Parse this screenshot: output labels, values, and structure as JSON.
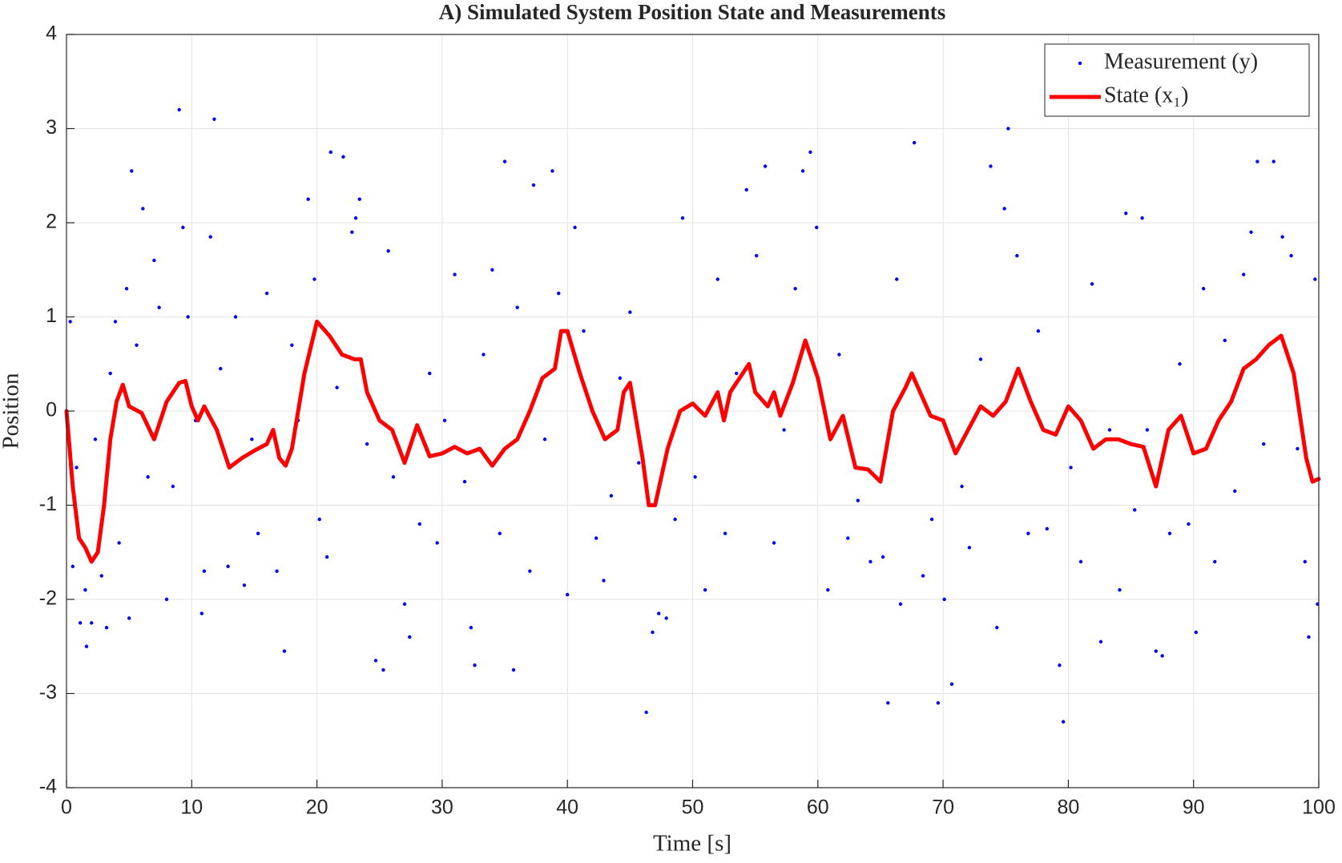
{
  "chart_data": {
    "type": "line",
    "title": "A) Simulated System Position State and Measurements",
    "x_label": "Time [s]",
    "y_label": "Position",
    "xlim": [
      0,
      100
    ],
    "ylim": [
      -4,
      4
    ],
    "xticks": [
      0,
      10,
      20,
      30,
      40,
      50,
      60,
      70,
      80,
      90,
      100
    ],
    "yticks": [
      -4,
      -3,
      -2,
      -1,
      0,
      1,
      2,
      3,
      4
    ],
    "grid": true,
    "legend": "top-right",
    "series": [
      {
        "name": "Measurement (y)",
        "type": "scatter",
        "color": "#0000ff",
        "x": [
          0.3,
          0.5,
          0.8,
          1.1,
          1.5,
          1.6,
          2,
          2.3,
          2.8,
          3.2,
          3.5,
          3.9,
          4.2,
          4.8,
          5,
          5.2,
          5.6,
          6.1,
          6.5,
          7,
          7.4,
          8,
          8.5,
          9,
          9.3,
          9.7,
          10.3,
          10.8,
          11,
          11.5,
          11.8,
          12.3,
          12.9,
          13.5,
          14.2,
          14.8,
          15.3,
          16,
          16.8,
          17.4,
          18,
          18.5,
          19.3,
          19.8,
          20.2,
          20.8,
          21.1,
          21.6,
          22.1,
          22.8,
          23.1,
          23.4,
          24,
          24.7,
          25.3,
          25.7,
          26.1,
          27,
          27.4,
          28.2,
          29,
          29.6,
          30.2,
          31,
          31.8,
          32.3,
          32.6,
          33.3,
          34,
          34.6,
          35,
          35.7,
          36,
          37,
          37.3,
          38.2,
          38.8,
          39.3,
          40,
          40.6,
          41.3,
          42.3,
          42.9,
          43.5,
          44.2,
          45,
          45.7,
          46.3,
          46.8,
          47.3,
          47.9,
          48.6,
          49.2,
          50.2,
          51,
          52,
          52.6,
          53.5,
          54.3,
          55.1,
          55.8,
          56.5,
          57.3,
          58.2,
          58.8,
          59.4,
          59.9,
          60.8,
          61.7,
          62.4,
          63.2,
          64.2,
          65.2,
          65.6,
          66.3,
          66.6,
          67.7,
          68.4,
          69.1,
          69.6,
          70.1,
          70.7,
          71.5,
          72.1,
          73,
          73.8,
          74.3,
          74.9,
          75.2,
          75.9,
          76.8,
          77.6,
          78.3,
          79.3,
          79.6,
          80.2,
          81,
          81.9,
          82.6,
          83.3,
          84.1,
          84.6,
          85.3,
          85.9,
          86.3,
          87,
          87.5,
          88.1,
          88.9,
          89.6,
          90.2,
          90.8,
          91.7,
          92.5,
          93.3,
          94,
          94.6,
          95.1,
          95.6,
          96.4,
          97.1,
          97.8,
          98.3,
          98.9,
          99.2,
          99.7,
          99.9
        ],
        "values": [
          0.95,
          -1.65,
          -0.6,
          -2.25,
          -1.9,
          -2.5,
          -2.25,
          -0.3,
          -1.75,
          -2.3,
          0.4,
          0.95,
          -1.4,
          1.3,
          -2.2,
          2.55,
          0.7,
          2.15,
          -0.7,
          1.6,
          1.1,
          -2.0,
          -0.8,
          3.2,
          1.95,
          1.0,
          -0.1,
          -2.15,
          -1.7,
          1.85,
          3.1,
          0.45,
          -1.65,
          1.0,
          -1.85,
          -0.3,
          -1.3,
          1.25,
          -1.7,
          -2.55,
          0.7,
          -0.1,
          2.25,
          1.4,
          -1.15,
          -1.55,
          2.75,
          0.25,
          2.7,
          1.9,
          2.05,
          2.25,
          -0.35,
          -2.65,
          -2.75,
          1.7,
          -0.7,
          -2.05,
          -2.4,
          -1.2,
          0.4,
          -1.4,
          -0.1,
          1.45,
          -0.75,
          -2.3,
          -2.7,
          0.6,
          1.5,
          -1.3,
          2.65,
          -2.75,
          1.1,
          -1.7,
          2.4,
          -0.3,
          2.55,
          1.25,
          -1.95,
          1.95,
          0.85,
          -1.35,
          -1.8,
          -0.9,
          0.35,
          1.05,
          -0.55,
          -3.2,
          -2.35,
          -2.15,
          -2.2,
          -1.15,
          2.05,
          -0.7,
          -1.9,
          1.4,
          -1.3,
          0.4,
          2.35,
          1.65,
          2.6,
          -1.4,
          -0.2,
          1.3,
          2.55,
          2.75,
          1.95,
          -1.9,
          0.6,
          -1.35,
          -0.95,
          -1.6,
          -1.55,
          -3.1,
          1.4,
          -2.05,
          2.85,
          -1.75,
          -1.15,
          -3.1,
          -2.0,
          -2.9,
          -0.8,
          -1.45,
          0.55,
          2.6,
          -2.3,
          2.15,
          3.0,
          1.65,
          -1.3,
          0.85,
          -1.25,
          -2.7,
          -3.3,
          -0.6,
          -1.6,
          1.35,
          -2.45,
          -0.2,
          -1.9,
          2.1,
          -1.05,
          2.05,
          -0.2,
          -2.55,
          -2.6,
          -1.3,
          0.5,
          -1.2,
          -2.35,
          1.3,
          -1.6,
          0.75,
          -0.85,
          1.45,
          1.9,
          2.65,
          -0.35,
          2.65,
          1.85,
          1.65,
          -0.4,
          -1.6,
          -2.4,
          1.4,
          -2.05
        ]
      },
      {
        "name": "State (x₁)",
        "type": "line",
        "color": "#ff0000",
        "x": [
          0,
          0.5,
          1,
          1.5,
          2,
          2.5,
          3,
          3.5,
          4,
          4.5,
          5,
          6,
          7,
          8,
          9,
          9.5,
          10,
          10.5,
          11,
          12,
          13,
          14,
          15,
          16,
          16.5,
          17,
          17.5,
          18,
          19,
          20,
          21,
          22,
          23,
          23.5,
          24,
          25,
          26,
          27,
          28,
          29,
          30,
          31,
          32,
          33,
          34,
          35,
          36,
          37,
          38,
          39,
          39.5,
          40,
          41,
          42,
          43,
          44,
          44.5,
          45,
          46,
          46.5,
          47,
          48,
          49,
          50,
          51,
          52,
          52.5,
          53,
          54,
          54.5,
          55,
          56,
          56.5,
          57,
          58,
          59,
          60,
          61,
          62,
          63,
          64,
          65,
          66,
          67,
          67.5,
          68,
          69,
          70,
          71,
          72,
          73,
          74,
          75,
          76,
          77,
          78,
          79,
          80,
          81,
          82,
          83,
          84,
          85,
          86,
          87,
          88,
          89,
          90,
          91,
          92,
          93,
          94,
          95,
          96,
          97,
          98,
          99,
          99.5,
          100
        ],
        "values": [
          0,
          -0.8,
          -1.35,
          -1.45,
          -1.6,
          -1.5,
          -1.0,
          -0.3,
          0.1,
          0.28,
          0.05,
          -0.02,
          -0.3,
          0.1,
          0.3,
          0.32,
          0.05,
          -0.1,
          0.05,
          -0.2,
          -0.6,
          -0.5,
          -0.42,
          -0.35,
          -0.2,
          -0.5,
          -0.58,
          -0.4,
          0.4,
          0.95,
          0.8,
          0.6,
          0.55,
          0.55,
          0.2,
          -0.1,
          -0.2,
          -0.55,
          -0.15,
          -0.48,
          -0.45,
          -0.38,
          -0.45,
          -0.4,
          -0.58,
          -0.4,
          -0.3,
          0.0,
          0.35,
          0.45,
          0.85,
          0.85,
          0.4,
          0.0,
          -0.3,
          -0.2,
          0.2,
          0.3,
          -0.5,
          -1.0,
          -1.0,
          -0.4,
          0.0,
          0.08,
          -0.05,
          0.2,
          -0.1,
          0.2,
          0.4,
          0.5,
          0.2,
          0.05,
          0.2,
          -0.05,
          0.3,
          0.75,
          0.35,
          -0.3,
          -0.05,
          -0.6,
          -0.62,
          -0.75,
          0.0,
          0.25,
          0.4,
          0.25,
          -0.05,
          -0.1,
          -0.45,
          -0.2,
          0.05,
          -0.05,
          0.1,
          0.45,
          0.1,
          -0.2,
          -0.25,
          0.05,
          -0.1,
          -0.4,
          -0.3,
          -0.3,
          -0.35,
          -0.38,
          -0.8,
          -0.2,
          -0.05,
          -0.45,
          -0.4,
          -0.1,
          0.1,
          0.45,
          0.55,
          0.7,
          0.8,
          0.4,
          -0.5,
          -0.75,
          -0.72
        ]
      }
    ]
  }
}
